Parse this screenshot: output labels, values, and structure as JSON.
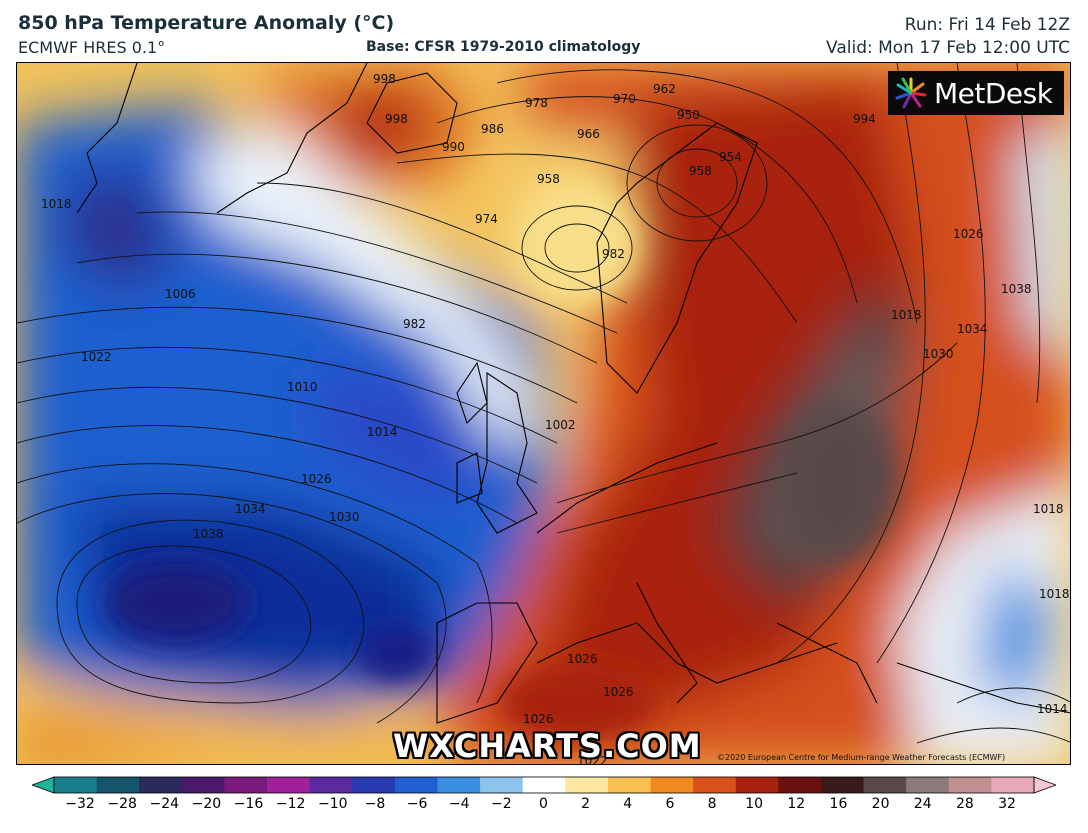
{
  "header": {
    "title": "850 hPa Temperature Anomaly (°C)",
    "model": "ECMWF HRES 0.1°",
    "base": "Base: CFSR 1979-2010 climatology",
    "run": "Run: Fri 14 Feb 12Z",
    "valid": "Valid: Mon 17 Feb 12:00 UTC"
  },
  "logo": {
    "text": "MetDesk",
    "icon": "metdesk-starburst-icon"
  },
  "watermark": "WXCHARTS.COM",
  "copyright": "©2020 European Centre for Medium-range Weather Forecasts (ECMWF)",
  "isobar_labels": [
    "998",
    "998",
    "990",
    "986",
    "978",
    "970",
    "962",
    "950",
    "954",
    "994",
    "958",
    "966",
    "958",
    "974",
    "982",
    "982",
    "1002",
    "1018",
    "1006",
    "1022",
    "1010",
    "1014",
    "1026",
    "1030",
    "1034",
    "1038",
    "1018",
    "1026",
    "1038",
    "1034",
    "1030",
    "1018",
    "1014",
    "1026",
    "1026",
    "1026",
    "1018",
    "1022"
  ],
  "colorbar": {
    "ticks": [
      "−32",
      "−28",
      "−24",
      "−20",
      "−16",
      "−12",
      "−10",
      "−8",
      "−6",
      "−4",
      "−2",
      "0",
      "2",
      "4",
      "6",
      "8",
      "10",
      "12",
      "16",
      "20",
      "24",
      "28",
      "32"
    ],
    "colors": [
      "#1fb39a",
      "#1a7f8c",
      "#14556a",
      "#2a2a5c",
      "#4a1a6a",
      "#7a1a7a",
      "#a0209a",
      "#5a2aa0",
      "#2a3ab0",
      "#1f5fcf",
      "#3a8ee0",
      "#8cc4ee",
      "#ffffff",
      "#ffe8a0",
      "#f7c050",
      "#f08a20",
      "#d8501a",
      "#a8200e",
      "#6a1010",
      "#3a1a1a",
      "#5a4a4a",
      "#8a7a7a",
      "#c09090",
      "#e8a8b8",
      "#f6c8d6"
    ]
  },
  "map": {
    "anomaly_fields": [
      {
        "region": "north-atlantic",
        "anomaly": -10
      },
      {
        "region": "azores-high",
        "anomaly": -12
      },
      {
        "region": "iceland",
        "anomaly": 6
      },
      {
        "region": "scandinavia",
        "anomaly": 8
      },
      {
        "region": "eastern-europe",
        "anomaly": 14
      },
      {
        "region": "iberia-mediterranean",
        "anomaly": 8
      }
    ]
  }
}
